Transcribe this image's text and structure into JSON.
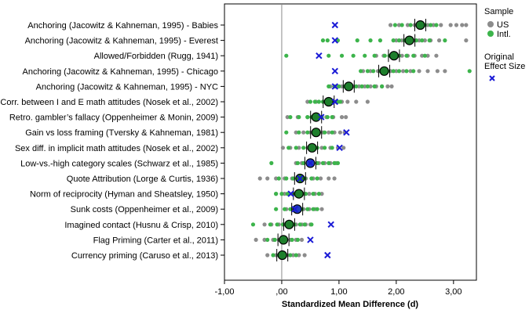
{
  "chart_data": {
    "type": "scatter",
    "title": "",
    "xlabel": "Standardized Mean Difference (d)",
    "ylabel": "",
    "xlim": [
      -1.0,
      3.4
    ],
    "x_ticks": [
      -1.0,
      0.0,
      1.0,
      2.0,
      3.0
    ],
    "x_tick_labels": [
      "-1,00",
      ",00",
      "1,00",
      "2,00",
      "3,00"
    ],
    "reference_line_x": 0.0,
    "legend": {
      "placement": "right",
      "sample_title": "Sample",
      "sample_entries": [
        {
          "name": "US",
          "color": "#8c8c8c"
        },
        {
          "name": "Intl.",
          "color": "#3cb44b"
        }
      ],
      "original_title_line1": "Original",
      "original_title_line2": "Effect Size",
      "original_marker_color": "#1a1ad6"
    },
    "colors": {
      "us": "#8c8c8c",
      "intl": "#3cb44b",
      "original": "#1a1ad6",
      "mean_fill": "#1e7f2c"
    },
    "effects": [
      {
        "label": "Anchoring (Jacowitz & Kahneman, 1995) - Babies",
        "mean": 2.42,
        "original": 0.93,
        "mean_color": "green",
        "us": [
          1.9,
          2.05,
          2.2,
          2.32,
          2.45,
          2.55,
          2.65,
          2.78,
          2.95,
          3.05,
          3.15,
          3.22
        ],
        "intl": [
          1.98,
          2.1,
          2.25,
          2.38,
          2.5,
          2.6,
          2.7
        ]
      },
      {
        "label": "Anchoring (Jacowitz & Kahneman, 1995) - Everest",
        "mean": 2.23,
        "original": 0.93,
        "mean_color": "green",
        "us": [
          2.0,
          2.1,
          2.2,
          2.3,
          2.4,
          2.5,
          2.6,
          2.75,
          3.22
        ],
        "intl": [
          0.72,
          0.8,
          0.98,
          1.32,
          1.55,
          1.72,
          1.95,
          2.05,
          2.15,
          2.35,
          2.45,
          2.58,
          2.85
        ]
      },
      {
        "label": "Allowed/Forbidden (Rugg, 1941)",
        "mean": 1.96,
        "original": 0.65,
        "mean_color": "green",
        "us": [
          1.65,
          1.78,
          1.9,
          2.0,
          2.1,
          2.2,
          2.32,
          2.45,
          2.55,
          2.7
        ],
        "intl": [
          0.08,
          0.82,
          1.05,
          1.25,
          1.45,
          1.62,
          1.8,
          1.88,
          2.05,
          2.18,
          2.3,
          2.5
        ]
      },
      {
        "label": "Anchoring (Jacowitz & Kahneman, 1995) - Chicago",
        "mean": 1.79,
        "original": 0.93,
        "mean_color": "green",
        "us": [
          1.42,
          1.55,
          1.68,
          1.8,
          1.9,
          2.0,
          2.12,
          2.25,
          2.4,
          2.55,
          2.72,
          2.85
        ],
        "intl": [
          1.38,
          1.5,
          1.6,
          1.72,
          1.85,
          1.95,
          2.05,
          2.18,
          2.3,
          3.28
        ]
      },
      {
        "label": "Anchoring (Jacowitz & Kahneman, 1995) - NYC",
        "mean": 1.17,
        "original": 0.93,
        "mean_color": "green",
        "us": [
          0.85,
          0.95,
          1.05,
          1.15,
          1.25,
          1.35,
          1.45,
          1.55,
          1.65,
          1.75,
          1.85,
          1.92
        ],
        "intl": [
          0.82,
          0.92,
          1.0,
          1.1,
          1.2,
          1.3,
          1.4,
          1.5,
          1.62,
          1.75
        ]
      },
      {
        "label": "Corr. between I and E math attitudes (Nosek et al., 2002)",
        "mean": 0.82,
        "original": 0.93,
        "mean_color": "green",
        "us": [
          0.45,
          0.6,
          0.72,
          0.85,
          0.95,
          1.05,
          1.15,
          1.3,
          1.5
        ],
        "intl": [
          0.5,
          0.58,
          0.65,
          0.72,
          0.78,
          0.85,
          0.9,
          0.98,
          1.02
        ]
      },
      {
        "label": "Retro. gambler’s fallacy (Oppenheimer & Monin, 2009)",
        "mean": 0.6,
        "original": 0.69,
        "mean_color": "green",
        "us": [
          0.1,
          0.28,
          0.45,
          0.58,
          0.68,
          0.78,
          0.9,
          1.05,
          1.12
        ],
        "intl": [
          0.15,
          0.3,
          0.45,
          0.52,
          0.6,
          0.7,
          0.8,
          0.88
        ]
      },
      {
        "label": "Gain vs loss framing (Tversky & Kahneman, 1981)",
        "mean": 0.6,
        "original": 1.13,
        "mean_color": "green",
        "us": [
          0.25,
          0.38,
          0.5,
          0.62,
          0.72,
          0.82,
          0.92,
          1.02,
          1.1
        ],
        "intl": [
          0.08,
          0.3,
          0.45,
          0.55,
          0.65,
          0.75,
          0.88
        ]
      },
      {
        "label": "Sex diff. in implicit math attitudes (Nosek et al., 2002)",
        "mean": 0.53,
        "original": 1.01,
        "mean_color": "green",
        "us": [
          0.02,
          0.15,
          0.3,
          0.45,
          0.58,
          0.7,
          0.85,
          0.98,
          1.08
        ],
        "intl": [
          0.12,
          0.25,
          0.38,
          0.5,
          0.62,
          0.75,
          0.88
        ]
      },
      {
        "label": "Low-vs.-high category scales (Schwarz et al., 1985)",
        "mean": 0.5,
        "original": 0.5,
        "mean_color": "blue",
        "us": [
          0.25,
          0.35,
          0.45,
          0.55,
          0.65,
          0.75,
          0.85,
          0.95
        ],
        "intl": [
          -0.18,
          0.28,
          0.38,
          0.5,
          0.62,
          0.72,
          0.82,
          0.92,
          0.98
        ]
      },
      {
        "label": "Quote Attribution (Lorge & Curtis, 1936)",
        "mean": 0.32,
        "original": 0.32,
        "mean_color": "green",
        "us": [
          -0.38,
          -0.25,
          -0.1,
          0.05,
          0.18,
          0.3,
          0.42,
          0.55,
          0.68,
          0.82,
          0.92
        ],
        "intl": [
          -0.05,
          0.08,
          0.2,
          0.3,
          0.4,
          0.52,
          0.62
        ]
      },
      {
        "label": "Norm of reciprocity (Hyman and Sheatsley, 1950)",
        "mean": 0.3,
        "original": 0.16,
        "mean_color": "green",
        "us": [
          -0.1,
          0.05,
          0.18,
          0.28,
          0.38,
          0.48,
          0.58,
          0.7
        ],
        "intl": [
          -0.1,
          0.0,
          0.1,
          0.2,
          0.3,
          0.42,
          0.55,
          0.65
        ]
      },
      {
        "label": "Sunk costs (Oppenheimer et al., 2009)",
        "mean": 0.27,
        "original": 0.23,
        "mean_color": "blue",
        "us": [
          0.08,
          0.18,
          0.28,
          0.38,
          0.48,
          0.58,
          0.7
        ],
        "intl": [
          -0.1,
          0.05,
          0.15,
          0.25,
          0.35,
          0.45,
          0.55,
          0.62
        ]
      },
      {
        "label": "Imagined contact (Husnu & Crisp, 2010)",
        "mean": 0.13,
        "original": 0.86,
        "mean_color": "green",
        "us": [
          -0.3,
          -0.18,
          -0.05,
          0.05,
          0.15,
          0.25,
          0.35,
          0.42,
          0.5
        ],
        "intl": [
          -0.5,
          -0.2,
          -0.08,
          0.02,
          0.12,
          0.22,
          0.32,
          0.4,
          0.52
        ]
      },
      {
        "label": "Flag Priming (Carter et al., 2011)",
        "mean": 0.03,
        "original": 0.5,
        "mean_color": "green",
        "us": [
          -0.45,
          -0.3,
          -0.15,
          -0.05,
          0.05,
          0.15,
          0.25,
          0.35
        ],
        "intl": [
          -0.25,
          -0.12,
          -0.02,
          0.08,
          0.18,
          0.28
        ]
      },
      {
        "label": "Currency priming (Caruso et al., 2013)",
        "mean": 0.01,
        "original": 0.8,
        "mean_color": "green",
        "us": [
          -0.25,
          -0.1,
          0.0,
          0.1,
          0.2,
          0.3,
          0.4
        ],
        "intl": [
          -0.15,
          -0.05,
          0.05,
          0.15,
          0.25
        ]
      }
    ]
  }
}
